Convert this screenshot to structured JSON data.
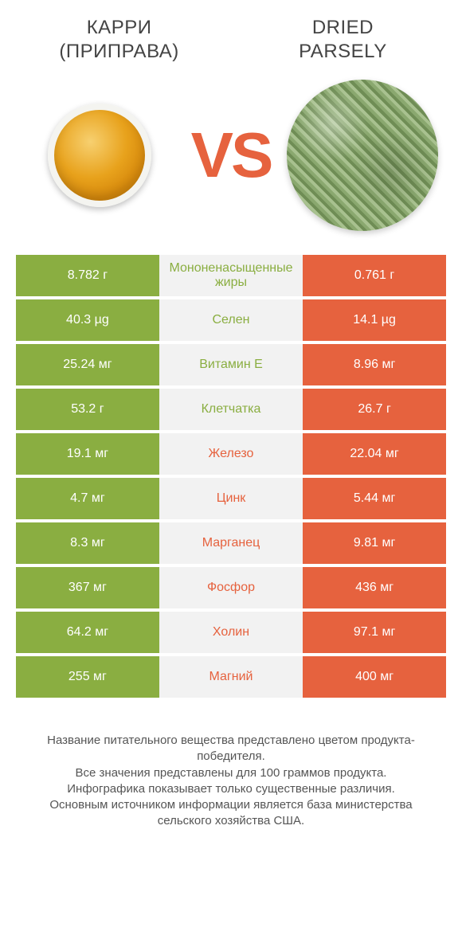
{
  "products": {
    "left": {
      "name_line1": "КАРРИ",
      "name_line2": "(ПРИПРАВА)"
    },
    "right": {
      "name_line1": "DRIED",
      "name_line2": "PARSELY"
    }
  },
  "vs_label": "VS",
  "colors": {
    "left": "#8aae41",
    "right": "#e6623e",
    "midbg": "#f2f2f2",
    "curry_center": "#e8a21c",
    "parsley_base": "#8aa86f"
  },
  "rows": [
    {
      "left": "8.782 г",
      "label": "Мононенасыщенные жиры",
      "right": "0.761 г",
      "winner": "left"
    },
    {
      "left": "40.3 µg",
      "label": "Селен",
      "right": "14.1 µg",
      "winner": "left"
    },
    {
      "left": "25.24 мг",
      "label": "Витамин E",
      "right": "8.96 мг",
      "winner": "left"
    },
    {
      "left": "53.2 г",
      "label": "Клетчатка",
      "right": "26.7 г",
      "winner": "left"
    },
    {
      "left": "19.1 мг",
      "label": "Железо",
      "right": "22.04 мг",
      "winner": "right"
    },
    {
      "left": "4.7 мг",
      "label": "Цинк",
      "right": "5.44 мг",
      "winner": "right"
    },
    {
      "left": "8.3 мг",
      "label": "Марганец",
      "right": "9.81 мг",
      "winner": "right"
    },
    {
      "left": "367 мг",
      "label": "Фосфор",
      "right": "436 мг",
      "winner": "right"
    },
    {
      "left": "64.2 мг",
      "label": "Холин",
      "right": "97.1 мг",
      "winner": "right"
    },
    {
      "left": "255 мг",
      "label": "Магний",
      "right": "400 мг",
      "winner": "right"
    }
  ],
  "footer": [
    "Название питательного вещества представлено цветом продукта-победителя.",
    "Все значения представлены для 100 граммов продукта.",
    "Инфографика показывает только существенные различия.",
    "Основным источником информации является база министерства сельского хозяйства США."
  ]
}
